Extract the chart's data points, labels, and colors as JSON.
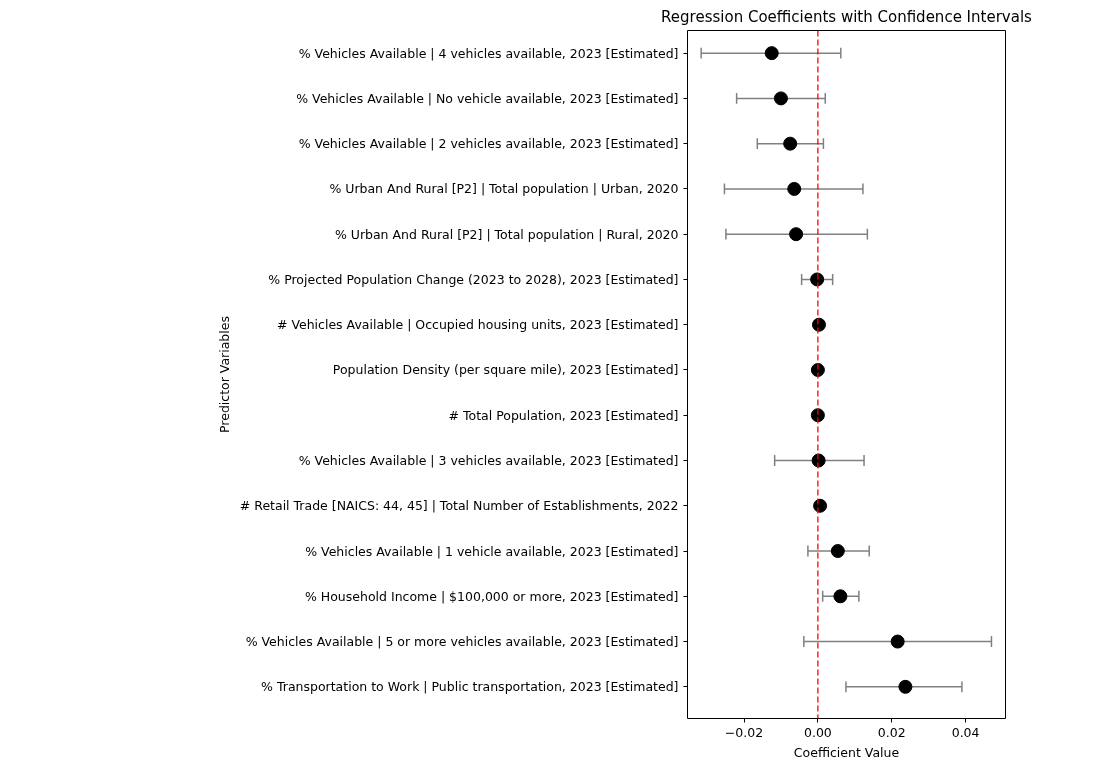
{
  "chart_data": {
    "type": "scatter",
    "orientation": "horizontal",
    "title": "Regression Coefficients with Confidence Intervals",
    "xlabel": "Coefficient Value",
    "ylabel": "Predictor Variables",
    "categories": [
      "% Vehicles Available | 4 vehicles available, 2023 [Estimated]",
      "% Vehicles Available | No vehicle available, 2023 [Estimated]",
      "% Vehicles Available | 2 vehicles available, 2023 [Estimated]",
      "% Urban And Rural [P2] | Total population | Urban, 2020",
      "% Urban And Rural [P2] | Total population | Rural, 2020",
      "% Projected Population Change (2023 to 2028), 2023 [Estimated]",
      "# Vehicles Available | Occupied housing units, 2023 [Estimated]",
      "Population Density (per square mile), 2023 [Estimated]",
      "# Total Population, 2023 [Estimated]",
      "% Vehicles Available | 3 vehicles available, 2023 [Estimated]",
      "# Retail Trade [NAICS: 44, 45] | Total Number of Establishments, 2022",
      "% Vehicles Available | 1 vehicle available, 2023 [Estimated]",
      "% Household Income | $100,000 or more, 2023 [Estimated]",
      "% Vehicles Available | 5 or more vehicles available, 2023 [Estimated]",
      "% Transportation to Work | Public transportation, 2023 [Estimated]"
    ],
    "values": [
      -0.0125,
      -0.01,
      -0.0075,
      -0.0064,
      -0.0059,
      -0.0002,
      0.0003,
      0.0,
      0.0,
      0.0002,
      0.0006,
      0.0054,
      0.0061,
      0.0216,
      0.0237
    ],
    "errors": [
      [
        -0.0316,
        0.0062
      ],
      [
        -0.022,
        0.002
      ],
      [
        -0.0164,
        0.0015
      ],
      [
        -0.0253,
        0.0122
      ],
      [
        -0.0249,
        0.0134
      ],
      [
        -0.0044,
        0.004
      ],
      null,
      null,
      null,
      [
        -0.0117,
        0.0125
      ],
      null,
      [
        -0.0027,
        0.0139
      ],
      [
        0.0013,
        0.0111
      ],
      [
        -0.0038,
        0.047
      ],
      [
        0.0076,
        0.039
      ]
    ],
    "color": "#000000",
    "marker": "circle",
    "grid": false,
    "xlim": [
      -0.0353,
      0.0508
    ],
    "xticks": [
      {
        "value": -0.02,
        "label": "−0.02"
      },
      {
        "value": 0.0,
        "label": "0.00"
      },
      {
        "value": 0.02,
        "label": "0.02"
      },
      {
        "value": 0.04,
        "label": "0.04"
      }
    ],
    "ref_lines": [
      {
        "axis": "x",
        "value": 0,
        "color": "#ff0000",
        "line_style": "dashed"
      }
    ]
  }
}
